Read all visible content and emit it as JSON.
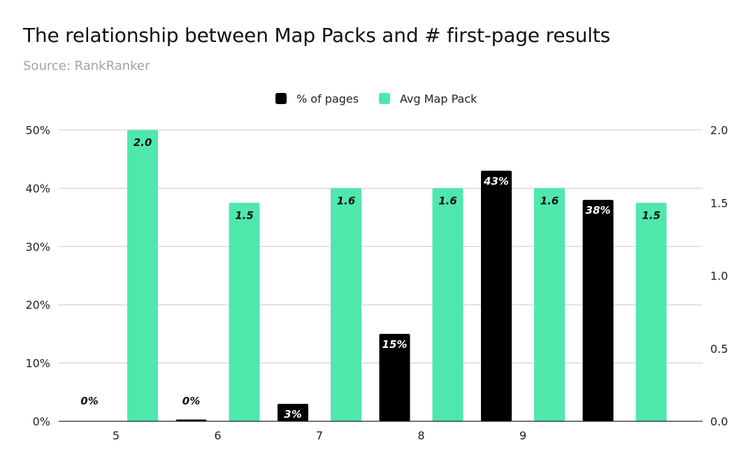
{
  "title": "The relationship between Map Packs and # first-page results",
  "subtitle": "Source: RankRanker",
  "colors": {
    "pct_series": "#000000",
    "map_series": "#4ee8ad",
    "grid": "#cccccc",
    "axis": "#222222"
  },
  "chart_data": {
    "type": "bar",
    "categories": [
      "5",
      "6",
      "7",
      "8",
      "9",
      ""
    ],
    "series": [
      {
        "name": "% of pages",
        "axis": "left",
        "values": [
          0,
          0.3,
          3,
          15,
          43,
          38
        ],
        "labels": [
          "0%",
          "0%",
          "3%",
          "15%",
          "43%",
          "38%"
        ]
      },
      {
        "name": "Avg Map Pack",
        "axis": "right",
        "values": [
          2.0,
          1.5,
          1.6,
          1.6,
          1.6,
          1.5
        ],
        "labels": [
          "2.0",
          "1.5",
          "1.6",
          "1.6",
          "1.6",
          "1.5"
        ]
      }
    ],
    "y_left": {
      "ylim": [
        0,
        50
      ],
      "ticks": [
        "0%",
        "10%",
        "20%",
        "30%",
        "40%",
        "50%"
      ]
    },
    "y_right": {
      "ylim": [
        0,
        2.0
      ],
      "ticks": [
        "0.0",
        "0.5",
        "1.0",
        "1.5",
        "2.0"
      ]
    },
    "grid": true,
    "legend": "top-center"
  }
}
